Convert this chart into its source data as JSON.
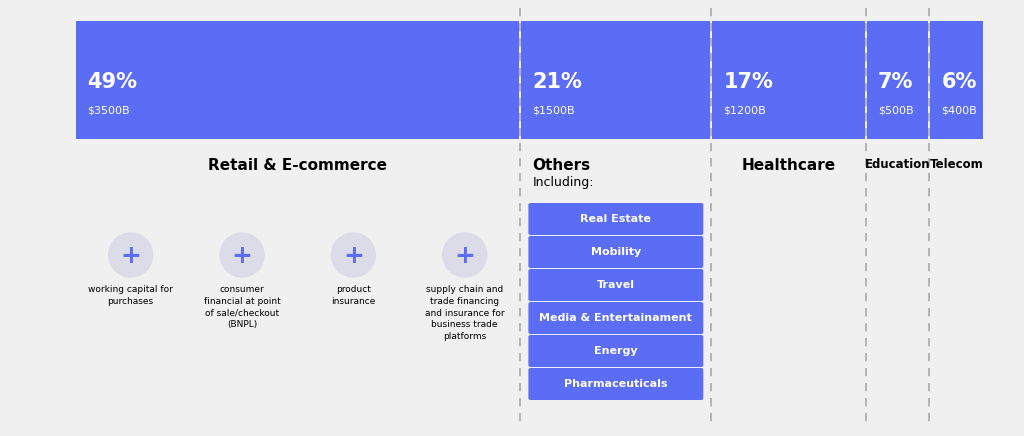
{
  "background_color": "#f0f0f0",
  "bar_color": "#5b6cf5",
  "sectors": [
    {
      "pct": "49%",
      "amount": "$3500B",
      "label": "Retail & E-commerce",
      "weight": 49
    },
    {
      "pct": "21%",
      "amount": "$1500B",
      "label": "Others",
      "label2": "Including:",
      "weight": 21
    },
    {
      "pct": "17%",
      "amount": "$1200B",
      "label": "Healthcare",
      "weight": 17
    },
    {
      "pct": "7%",
      "amount": "$500B",
      "label": "Education",
      "weight": 7
    },
    {
      "pct": "6%",
      "amount": "$400B",
      "label": "Telecom",
      "weight": 6
    }
  ],
  "retail_subcategories": [
    "working capital for\npurchases",
    "consumer\nfinancial at point\nof sale/checkout\n(BNPL)",
    "product\ninsurance",
    "supply chain and\ntrade financing\nand insurance for\nbusiness trade\nplatforms"
  ],
  "others_subcategories": [
    "Real Estate",
    "Mobility",
    "Travel",
    "Media & Entertainament",
    "Energy",
    "Pharmaceuticals"
  ]
}
